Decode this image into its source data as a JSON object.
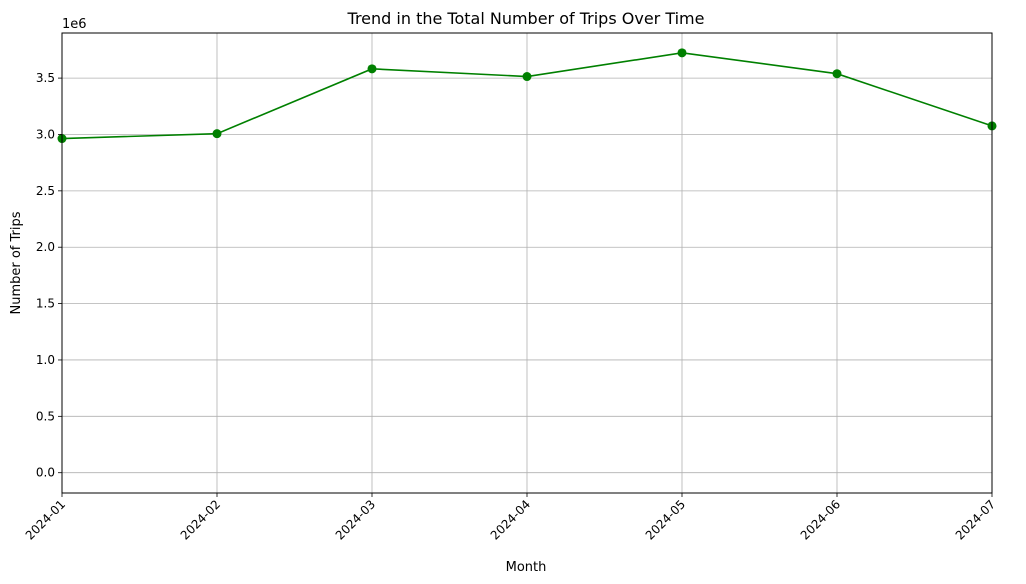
{
  "chart_data": {
    "type": "line",
    "title": "Trend in the Total Number of Trips Over Time",
    "xlabel": "Month",
    "ylabel": "Number of Trips",
    "y_offset_label": "1e6",
    "x": [
      "2024-01",
      "2024-02",
      "2024-03",
      "2024-04",
      "2024-05",
      "2024-06",
      "2024-07"
    ],
    "y_tick_labels": [
      "0.0",
      "0.5",
      "1.0",
      "1.5",
      "2.0",
      "2.5",
      "3.0",
      "3.5"
    ],
    "y_ticks": [
      0,
      500000,
      1000000,
      1500000,
      2000000,
      2500000,
      3000000,
      3500000
    ],
    "ylim": [
      -180000,
      3900000
    ],
    "grid": true,
    "series": [
      {
        "values": [
          2964000,
          3007000,
          3582000,
          3514000,
          3724000,
          3539000,
          3076000
        ],
        "color": "#008000",
        "marker": "circle"
      }
    ]
  }
}
